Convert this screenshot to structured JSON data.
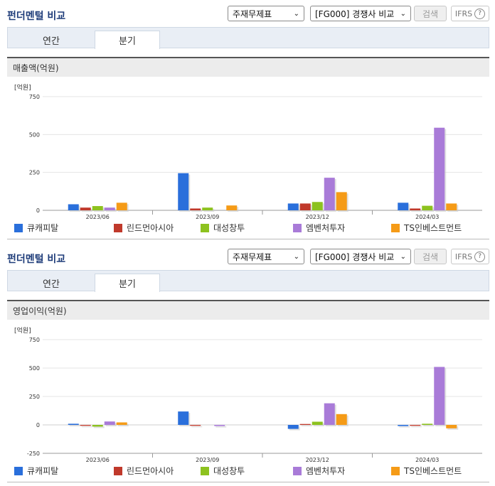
{
  "panels": [
    {
      "title": "펀더멘털 비교",
      "select1": "주재무제표",
      "select2": "[FG000] 경쟁사 비교",
      "search_label": "검색",
      "ifrs_label": "IFRS",
      "help_glyph": "?",
      "tabs": [
        "연간",
        "분기"
      ],
      "active_tab": "분기",
      "section_title": "매출액(억원)",
      "chart_data": {
        "type": "bar",
        "unit_label": "[억원]",
        "categories": [
          "2023/06",
          "2023/09",
          "2023/12",
          "2024/03"
        ],
        "ylim": [
          0,
          750
        ],
        "yticks": [
          0,
          250,
          500,
          750
        ],
        "grid": true,
        "legend_position": "bottom",
        "series": [
          {
            "name": "큐캐피탈",
            "color": "#2a6fdb",
            "values": [
              40,
              245,
              45,
              50
            ]
          },
          {
            "name": "린드먼아시아",
            "color": "#c0392b",
            "values": [
              18,
              12,
              45,
              12
            ]
          },
          {
            "name": "대성창투",
            "color": "#8dc21f",
            "values": [
              28,
              18,
              55,
              30
            ]
          },
          {
            "name": "엠벤처투자",
            "color": "#a97bd8",
            "values": [
              18,
              0,
              215,
              545
            ]
          },
          {
            "name": "TS인베스트먼트",
            "color": "#f59b17",
            "values": [
              50,
              32,
              120,
              45
            ]
          }
        ]
      }
    },
    {
      "title": "펀더멘털 비교",
      "select1": "주재무제표",
      "select2": "[FG000] 경쟁사 비교",
      "search_label": "검색",
      "ifrs_label": "IFRS",
      "help_glyph": "?",
      "tabs": [
        "연간",
        "분기"
      ],
      "active_tab": "분기",
      "section_title": "영업이익(억원)",
      "chart_data": {
        "type": "bar",
        "unit_label": "[억원]",
        "categories": [
          "2023/06",
          "2023/09",
          "2023/12",
          "2024/03"
        ],
        "ylim": [
          -250,
          750
        ],
        "yticks": [
          -250,
          0,
          250,
          500,
          750
        ],
        "grid": true,
        "legend_position": "bottom",
        "series": [
          {
            "name": "큐캐피탈",
            "color": "#2a6fdb",
            "values": [
              10,
              118,
              -35,
              -10
            ]
          },
          {
            "name": "린드먼아시아",
            "color": "#c0392b",
            "values": [
              -8,
              -8,
              8,
              -8
            ]
          },
          {
            "name": "대성창투",
            "color": "#8dc21f",
            "values": [
              -15,
              0,
              28,
              10
            ]
          },
          {
            "name": "엠벤처투자",
            "color": "#a97bd8",
            "values": [
              30,
              -10,
              190,
              510
            ]
          },
          {
            "name": "TS인베스트먼트",
            "color": "#f59b17",
            "values": [
              22,
              0,
              95,
              -30
            ]
          }
        ]
      }
    }
  ]
}
